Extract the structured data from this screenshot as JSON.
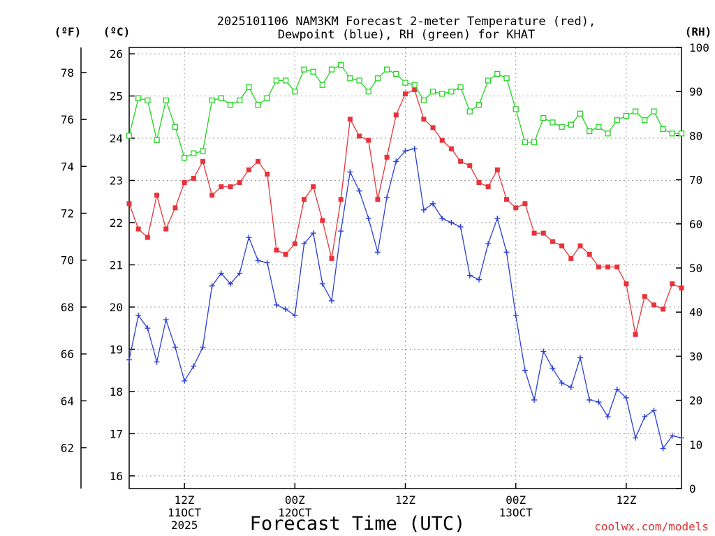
{
  "chart_data": {
    "type": "line",
    "title_line1": "2025101106 NAM3KM Forecast 2-meter Temperature (red),",
    "title_line2": "Dewpoint (blue), RH (green) for KHAT",
    "xlabel": "Forecast Time (UTC)",
    "axis_units": {
      "fahrenheit": "(ºF)",
      "celsius": "(ºC)",
      "rh": "(RH)"
    },
    "celsius_ticks": [
      "26",
      "25",
      "24",
      "23",
      "22",
      "21",
      "20",
      "19",
      "18",
      "17",
      "16"
    ],
    "fahrenheit_ticks": [
      "78",
      "76",
      "74",
      "72",
      "70",
      "68",
      "66",
      "64",
      "62"
    ],
    "rh_ticks": [
      "100",
      "90",
      "80",
      "70",
      "60",
      "50",
      "40",
      "30",
      "20",
      "10",
      "0"
    ],
    "ylim_celsius": [
      15.7,
      26.15
    ],
    "ylim_fahrenheit": [
      60.26,
      79.07
    ],
    "ylim_rh": [
      0,
      100
    ],
    "x_hours_range": [
      0,
      60
    ],
    "x_ticks": [
      {
        "hour": 6,
        "line1": "12Z",
        "line2": "11OCT",
        "line3": "2025"
      },
      {
        "hour": 18,
        "line1": "00Z",
        "line2": "12OCT",
        "line3": ""
      },
      {
        "hour": 30,
        "line1": "12Z",
        "line2": "",
        "line3": ""
      },
      {
        "hour": 42,
        "line1": "00Z",
        "line2": "13OCT",
        "line3": ""
      },
      {
        "hour": 54,
        "line1": "12Z",
        "line2": "",
        "line3": ""
      }
    ],
    "series": [
      {
        "name": "2-meter Temperature",
        "color": "#e8333a",
        "marker": "filled-square",
        "unit": "C",
        "values": [
          22.45,
          21.85,
          21.65,
          22.65,
          21.85,
          22.35,
          22.95,
          23.05,
          23.45,
          22.65,
          22.85,
          22.85,
          22.95,
          23.25,
          23.45,
          23.15,
          21.35,
          21.25,
          21.5,
          22.55,
          22.85,
          22.05,
          21.15,
          22.55,
          24.45,
          24.05,
          23.95,
          22.55,
          23.55,
          24.55,
          25.05,
          25.15,
          24.45,
          24.25,
          23.95,
          23.75,
          23.45,
          23.35,
          22.95,
          22.85,
          23.25,
          22.55,
          22.35,
          22.45,
          21.75,
          21.75,
          21.55,
          21.45,
          21.15,
          21.45,
          21.25,
          20.95,
          20.95,
          20.95,
          20.55,
          19.35,
          20.25,
          20.05,
          19.95,
          20.55,
          20.45
        ]
      },
      {
        "name": "Dewpoint",
        "color": "#2a3fd6",
        "marker": "plus",
        "unit": "C",
        "values": [
          18.75,
          19.8,
          19.5,
          18.7,
          19.7,
          19.05,
          18.25,
          18.6,
          19.05,
          20.5,
          20.8,
          20.55,
          20.8,
          21.65,
          21.1,
          21.05,
          20.05,
          19.95,
          19.8,
          21.5,
          21.75,
          20.55,
          20.15,
          21.8,
          23.2,
          22.75,
          22.1,
          21.3,
          22.6,
          23.45,
          23.7,
          23.75,
          22.3,
          22.45,
          22.1,
          22.0,
          21.9,
          20.75,
          20.65,
          21.5,
          22.1,
          21.3,
          19.8,
          18.5,
          17.8,
          18.95,
          18.55,
          18.2,
          18.1,
          18.8,
          17.8,
          17.75,
          17.4,
          18.05,
          17.85,
          16.9,
          17.4,
          17.55,
          16.65,
          16.95,
          16.9
        ]
      },
      {
        "name": "RH",
        "color": "#22d422",
        "marker": "open-square",
        "unit": "%",
        "values": [
          80,
          88.5,
          88,
          79,
          88,
          82,
          75,
          76,
          76.5,
          88,
          88.5,
          87,
          88,
          91,
          87,
          88.5,
          92.5,
          92.5,
          90,
          95,
          94.5,
          91.5,
          95,
          96,
          93,
          92.5,
          90,
          93,
          95,
          94,
          92,
          91.5,
          88,
          90,
          89.5,
          90,
          91,
          85.5,
          87,
          92.5,
          94,
          93,
          86,
          78.5,
          78.5,
          84,
          83,
          82,
          82.5,
          85,
          81,
          82,
          80.5,
          83.5,
          84.5,
          85.5,
          83.5,
          85.5,
          81.5,
          80.5,
          80.5
        ]
      }
    ],
    "credit": "coolwx.com/models"
  }
}
